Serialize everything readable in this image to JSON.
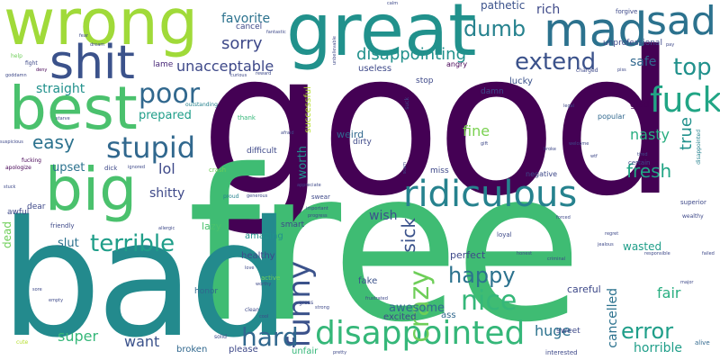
{
  "palette": {
    "dark_purple": "#440154",
    "indigo": "#482878",
    "blue": "#3e4989",
    "slate": "#31688e",
    "teal": "#26828e",
    "green_teal": "#1f9e89",
    "green": "#35b779",
    "light_green": "#6ece58",
    "yellow_green": "#b5de2b",
    "yellow": "#fde725"
  },
  "words": [
    {
      "text": "good",
      "color": "#440154"
    },
    {
      "text": "free",
      "color": "#3fbc73"
    },
    {
      "text": "bad",
      "color": "#238a8d"
    },
    {
      "text": "wrong",
      "color": "#a0da39"
    },
    {
      "text": "great",
      "color": "#21918c"
    },
    {
      "text": "best",
      "color": "#4ac16d"
    },
    {
      "text": "big",
      "color": "#4ac16d"
    },
    {
      "text": "shit",
      "color": "#3b528b"
    },
    {
      "text": "mad",
      "color": "#2c728e"
    },
    {
      "text": "sad",
      "color": "#2c728e"
    },
    {
      "text": "ridiculous",
      "color": "#26828e"
    },
    {
      "text": "disappointed",
      "color": "#35b779"
    },
    {
      "text": "fuck",
      "color": "#21a585"
    },
    {
      "text": "stupid",
      "color": "#31688e"
    },
    {
      "text": "funny",
      "color": "#3b528b"
    },
    {
      "text": "poor",
      "color": "#31688e"
    },
    {
      "text": "crazy",
      "color": "#6ece58"
    },
    {
      "text": "nice",
      "color": "#35b779"
    },
    {
      "text": "terrible",
      "color": "#1f9e89"
    },
    {
      "text": "extend",
      "color": "#3b528b"
    },
    {
      "text": "hard",
      "color": "#31688e"
    },
    {
      "text": "top",
      "color": "#21918c"
    },
    {
      "text": "happy",
      "color": "#2c728e"
    },
    {
      "text": "dumb",
      "color": "#26828e"
    },
    {
      "text": "disappointing",
      "color": "#21918c"
    },
    {
      "text": "error",
      "color": "#1f9e89"
    },
    {
      "text": "fresh",
      "color": "#21a585"
    },
    {
      "text": "easy",
      "color": "#2c728e"
    },
    {
      "text": "sick",
      "color": "#3b528b"
    },
    {
      "text": "sorry",
      "color": "#3e4989"
    },
    {
      "text": "unacceptable",
      "color": "#3e4989"
    },
    {
      "text": "lol",
      "color": "#3e4989"
    },
    {
      "text": "true",
      "color": "#21918c"
    },
    {
      "text": "nasty",
      "color": "#28ae80"
    },
    {
      "text": "huge",
      "color": "#2c728e"
    },
    {
      "text": "fine",
      "color": "#7ad151"
    },
    {
      "text": "super",
      "color": "#35b779"
    },
    {
      "text": "want",
      "color": "#3b528b"
    },
    {
      "text": "fair",
      "color": "#28ae80"
    },
    {
      "text": "straight",
      "color": "#21918c"
    },
    {
      "text": "horrible",
      "color": "#1f9e89"
    },
    {
      "text": "cancelled",
      "color": "#2c728e"
    },
    {
      "text": "safe",
      "color": "#31688e"
    },
    {
      "text": "rich",
      "color": "#3e4989"
    },
    {
      "text": "favorite",
      "color": "#2c728e"
    },
    {
      "text": "pathetic",
      "color": "#3b528b"
    },
    {
      "text": "prepared",
      "color": "#1f9e89"
    },
    {
      "text": "shitty",
      "color": "#3e4989"
    },
    {
      "text": "upset",
      "color": "#2c728e"
    },
    {
      "text": "worth",
      "color": "#21918c"
    },
    {
      "text": "wish",
      "color": "#3b528b"
    },
    {
      "text": "slut",
      "color": "#2c728e"
    },
    {
      "text": "awesome",
      "color": "#31688e"
    },
    {
      "text": "wasted",
      "color": "#1f9e89"
    },
    {
      "text": "careful",
      "color": "#3e4989"
    },
    {
      "text": "perfect",
      "color": "#3e4989"
    },
    {
      "text": "weird",
      "color": "#31688e"
    },
    {
      "text": "lazy",
      "color": "#4ac16d"
    },
    {
      "text": "amazing",
      "color": "#21918c"
    },
    {
      "text": "healthy",
      "color": "#3e4989"
    },
    {
      "text": "excited",
      "color": "#3e4989"
    },
    {
      "text": "broken",
      "color": "#31688e"
    },
    {
      "text": "please",
      "color": "#3e4989"
    },
    {
      "text": "unfair",
      "color": "#35b779"
    },
    {
      "text": "fake",
      "color": "#3b528b"
    },
    {
      "text": "ass",
      "color": "#31688e"
    },
    {
      "text": "dead",
      "color": "#6ece58"
    },
    {
      "text": "lucky",
      "color": "#3b528b"
    },
    {
      "text": "glad",
      "color": "#440154"
    },
    {
      "text": "useless",
      "color": "#3e4989"
    },
    {
      "text": "cancel",
      "color": "#3e4989"
    },
    {
      "text": "difficult",
      "color": "#3e4989"
    },
    {
      "text": "dirty",
      "color": "#3e4989"
    },
    {
      "text": "damn",
      "color": "#3e4989"
    },
    {
      "text": "angry",
      "color": "#440154"
    },
    {
      "text": "unprofessional",
      "color": "#3e4989"
    },
    {
      "text": "successful",
      "color": "#b5de2b"
    },
    {
      "text": "stop",
      "color": "#3e4989"
    },
    {
      "text": "lame",
      "color": "#482878"
    },
    {
      "text": "honor",
      "color": "#31688e"
    },
    {
      "text": "sweet",
      "color": "#3e4989"
    },
    {
      "text": "miss",
      "color": "#3e4989"
    },
    {
      "text": "smart",
      "color": "#3e4989"
    },
    {
      "text": "popular",
      "color": "#31688e"
    },
    {
      "text": "negative",
      "color": "#3e4989"
    },
    {
      "text": "certain",
      "color": "#3e4989"
    },
    {
      "text": "superior",
      "color": "#3e4989"
    },
    {
      "text": "interested",
      "color": "#3e4989"
    },
    {
      "text": "alive",
      "color": "#31688e"
    },
    {
      "text": "outstanding",
      "color": "#26828e"
    },
    {
      "text": "disappointed",
      "color": "#26828e"
    },
    {
      "text": "thank",
      "color": "#35b779"
    },
    {
      "text": "crash",
      "color": "#6ece58"
    },
    {
      "text": "active",
      "color": "#6ece58"
    },
    {
      "text": "proud",
      "color": "#26828e"
    },
    {
      "text": "dear",
      "color": "#3e4989"
    },
    {
      "text": "awful",
      "color": "#3e4989"
    },
    {
      "text": "friendly",
      "color": "#3e4989"
    },
    {
      "text": "loyal",
      "color": "#3e4989"
    },
    {
      "text": "swear",
      "color": "#3e4989"
    },
    {
      "text": "dick",
      "color": "#3e4989"
    },
    {
      "text": "fucking",
      "color": "#440154"
    },
    {
      "text": "apologize",
      "color": "#440154"
    },
    {
      "text": "deny",
      "color": "#440154"
    },
    {
      "text": "help",
      "color": "#6ece58"
    },
    {
      "text": "fight",
      "color": "#3e4989"
    },
    {
      "text": "goddamn",
      "color": "#3e4989"
    },
    {
      "text": "starve",
      "color": "#3e4989"
    },
    {
      "text": "suspicious",
      "color": "#3e4989"
    },
    {
      "text": "cute",
      "color": "#b5de2b"
    },
    {
      "text": "solid",
      "color": "#3e4989"
    },
    {
      "text": "clean",
      "color": "#3e4989"
    },
    {
      "text": "cool",
      "color": "#3e4989"
    },
    {
      "text": "pretty",
      "color": "#3e4989"
    },
    {
      "text": "gross",
      "color": "#3e4989"
    },
    {
      "text": "strong",
      "color": "#3e4989"
    },
    {
      "text": "regret",
      "color": "#3e4989"
    },
    {
      "text": "jealous",
      "color": "#3e4989"
    },
    {
      "text": "responsible",
      "color": "#3e4989"
    },
    {
      "text": "criminal",
      "color": "#3e4989"
    },
    {
      "text": "honest",
      "color": "#3e4989"
    },
    {
      "text": "forced",
      "color": "#3e4989"
    },
    {
      "text": "broke",
      "color": "#3e4989"
    },
    {
      "text": "welcome",
      "color": "#3e4989"
    },
    {
      "text": "wtf",
      "color": "#3e4989"
    },
    {
      "text": "gift",
      "color": "#3e4989"
    },
    {
      "text": "fantastic",
      "color": "#3e4989"
    },
    {
      "text": "forgive",
      "color": "#3e4989"
    },
    {
      "text": "pay",
      "color": "#3e4989"
    },
    {
      "text": "tired",
      "color": "#3e4989"
    },
    {
      "text": "wealthy",
      "color": "#3e4989"
    },
    {
      "text": "charged",
      "color": "#3e4989"
    },
    {
      "text": "piss",
      "color": "#3e4989"
    },
    {
      "text": "legal",
      "color": "#3e4989"
    },
    {
      "text": "important",
      "color": "#3e4989"
    },
    {
      "text": "appreciate",
      "color": "#3e4989"
    },
    {
      "text": "progress",
      "color": "#3e4989"
    },
    {
      "text": "afraid",
      "color": "#3e4989"
    },
    {
      "text": "ignored",
      "color": "#3e4989"
    },
    {
      "text": "allergic",
      "color": "#3e4989"
    },
    {
      "text": "generous",
      "color": "#3e4989"
    },
    {
      "text": "unbelievable",
      "color": "#3e4989"
    },
    {
      "text": "reward",
      "color": "#3e4989"
    },
    {
      "text": "curious",
      "color": "#3e4989"
    },
    {
      "text": "suck",
      "color": "#3e4989"
    },
    {
      "text": "scam",
      "color": "#3e4989"
    },
    {
      "text": "frustrated",
      "color": "#3e4989"
    },
    {
      "text": "worthy",
      "color": "#3e4989"
    },
    {
      "text": "love",
      "color": "#3e4989"
    },
    {
      "text": "empty",
      "color": "#3e4989"
    },
    {
      "text": "failed",
      "color": "#3e4989"
    },
    {
      "text": "major",
      "color": "#3e4989"
    },
    {
      "text": "stuck",
      "color": "#3e4989"
    },
    {
      "text": "sore",
      "color": "#3e4989"
    },
    {
      "text": "dream",
      "color": "#3e4989"
    },
    {
      "text": "fear",
      "color": "#3e4989"
    },
    {
      "text": "calm",
      "color": "#3e4989"
    }
  ]
}
